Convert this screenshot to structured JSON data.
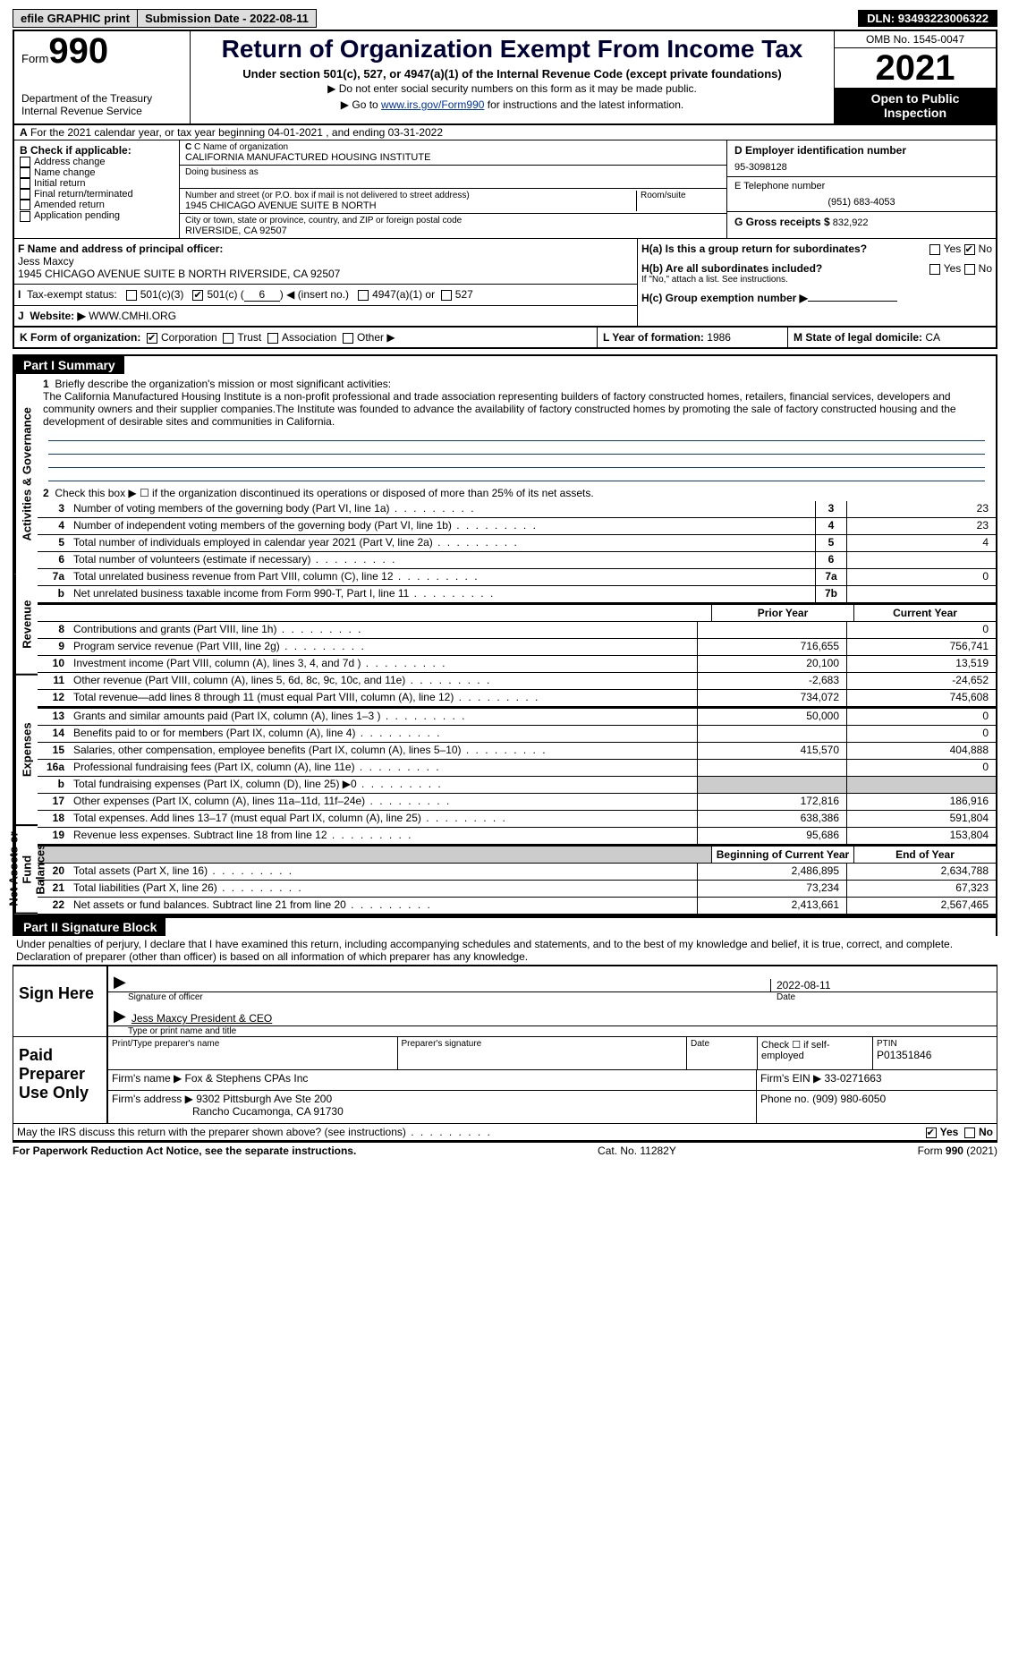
{
  "topbar": {
    "efile": "efile GRAPHIC print",
    "subdate_label": "Submission Date -",
    "subdate": "2022-08-11",
    "dln_label": "DLN:",
    "dln": "93493223006322"
  },
  "header": {
    "form_prefix": "Form",
    "form_no": "990",
    "title": "Return of Organization Exempt From Income Tax",
    "sub1": "Under section 501(c), 527, or 4947(a)(1) of the Internal Revenue Code (except private foundations)",
    "sub2": "▶ Do not enter social security numbers on this form as it may be made public.",
    "sub3_pre": "▶ Go to ",
    "sub3_link": "www.irs.gov/Form990",
    "sub3_post": " for instructions and the latest information.",
    "omb": "OMB No. 1545-0047",
    "year": "2021",
    "open": "Open to Public Inspection",
    "dept": "Department of the Treasury",
    "irs": "Internal Revenue Service"
  },
  "A": {
    "text": "For the 2021 calendar year, or tax year beginning 04-01-2021    , and ending 03-31-2022"
  },
  "B": {
    "label": "B Check if applicable:",
    "opts": [
      "Address change",
      "Name change",
      "Initial return",
      "Final return/terminated",
      "Amended return",
      "Application pending"
    ]
  },
  "C": {
    "name_label": "C Name of organization",
    "name": "CALIFORNIA MANUFACTURED HOUSING INSTITUTE",
    "dba_label": "Doing business as",
    "street_label": "Number and street (or P.O. box if mail is not delivered to street address)",
    "room_label": "Room/suite",
    "street": "1945 CHICAGO AVENUE SUITE B NORTH",
    "city_label": "City or town, state or province, country, and ZIP or foreign postal code",
    "city": "RIVERSIDE, CA  92507"
  },
  "D": {
    "label": "D Employer identification number",
    "val": "95-3098128"
  },
  "E": {
    "label": "E Telephone number",
    "val": "(951) 683-4053"
  },
  "G": {
    "label": "G Gross receipts $",
    "val": "832,922"
  },
  "F": {
    "label": "F  Name and address of principal officer:",
    "name": "Jess Maxcy",
    "addr": "1945 CHICAGO AVENUE SUITE B NORTH RIVERSIDE, CA  92507"
  },
  "H": {
    "a_label": "H(a)  Is this a group return for subordinates?",
    "b_label": "H(b)  Are all subordinates included?",
    "b_note": "If \"No,\" attach a list. See instructions.",
    "c_label": "H(c)  Group exemption number ▶"
  },
  "I": {
    "label": "Tax-exempt status:",
    "o501c3": "501(c)(3)",
    "o501c": "501(c) (",
    "o501c_no": "6",
    "o501c_post": ") ◀ (insert no.)",
    "o4947": "4947(a)(1) or",
    "o527": "527"
  },
  "J": {
    "label": "Website: ▶",
    "val": "WWW.CMHI.ORG"
  },
  "K": {
    "label": "K Form of organization:",
    "opts": [
      "Corporation",
      "Trust",
      "Association",
      "Other ▶"
    ]
  },
  "L": {
    "label": "L Year of formation:",
    "val": "1986"
  },
  "M": {
    "label": "M State of legal domicile:",
    "val": "CA"
  },
  "partI": {
    "title": "Part I    Summary",
    "sideA": "Activities & Governance",
    "sideR": "Revenue",
    "sideE": "Expenses",
    "sideN": "Net Assets or Fund Balances",
    "l1": "Briefly describe the organization's mission or most significant activities:",
    "l1text": "The California Manufactured Housing Institute is a non-profit professional and trade association representing builders of factory constructed homes, retailers, financial services, developers and community owners and their supplier companies.The Institute was founded to advance the availability of factory constructed homes by promoting the sale of factory constructed housing and the development of desirable sites and communities in California.",
    "l2": "Check this box ▶ ☐  if the organization discontinued its operations or disposed of more than 25% of its net assets.",
    "lines": [
      {
        "n": "3",
        "t": "Number of voting members of the governing body (Part VI, line 1a)",
        "box": "3",
        "v": "23"
      },
      {
        "n": "4",
        "t": "Number of independent voting members of the governing body (Part VI, line 1b)",
        "box": "4",
        "v": "23"
      },
      {
        "n": "5",
        "t": "Total number of individuals employed in calendar year 2021 (Part V, line 2a)",
        "box": "5",
        "v": "4"
      },
      {
        "n": "6",
        "t": "Total number of volunteers (estimate if necessary)",
        "box": "6",
        "v": ""
      },
      {
        "n": "7a",
        "t": "Total unrelated business revenue from Part VIII, column (C), line 12",
        "box": "7a",
        "v": "0"
      },
      {
        "n": "b",
        "t": "Net unrelated business taxable income from Form 990-T, Part I, line 11",
        "box": "7b",
        "v": ""
      }
    ],
    "colhead_prior": "Prior Year",
    "colhead_cur": "Current Year",
    "rev": [
      {
        "n": "8",
        "t": "Contributions and grants (Part VIII, line 1h)",
        "p": "",
        "c": "0"
      },
      {
        "n": "9",
        "t": "Program service revenue (Part VIII, line 2g)",
        "p": "716,655",
        "c": "756,741"
      },
      {
        "n": "10",
        "t": "Investment income (Part VIII, column (A), lines 3, 4, and 7d )",
        "p": "20,100",
        "c": "13,519"
      },
      {
        "n": "11",
        "t": "Other revenue (Part VIII, column (A), lines 5, 6d, 8c, 9c, 10c, and 11e)",
        "p": "-2,683",
        "c": "-24,652"
      },
      {
        "n": "12",
        "t": "Total revenue—add lines 8 through 11 (must equal Part VIII, column (A), line 12)",
        "p": "734,072",
        "c": "745,608"
      }
    ],
    "exp": [
      {
        "n": "13",
        "t": "Grants and similar amounts paid (Part IX, column (A), lines 1–3 )",
        "p": "50,000",
        "c": "0"
      },
      {
        "n": "14",
        "t": "Benefits paid to or for members (Part IX, column (A), line 4)",
        "p": "",
        "c": "0"
      },
      {
        "n": "15",
        "t": "Salaries, other compensation, employee benefits (Part IX, column (A), lines 5–10)",
        "p": "415,570",
        "c": "404,888"
      },
      {
        "n": "16a",
        "t": "Professional fundraising fees (Part IX, column (A), line 11e)",
        "p": "",
        "c": "0"
      },
      {
        "n": "b",
        "t": "Total fundraising expenses (Part IX, column (D), line 25) ▶0",
        "p": "shade",
        "c": "shade"
      },
      {
        "n": "17",
        "t": "Other expenses (Part IX, column (A), lines 11a–11d, 11f–24e)",
        "p": "172,816",
        "c": "186,916"
      },
      {
        "n": "18",
        "t": "Total expenses. Add lines 13–17 (must equal Part IX, column (A), line 25)",
        "p": "638,386",
        "c": "591,804"
      },
      {
        "n": "19",
        "t": "Revenue less expenses. Subtract line 18 from line 12",
        "p": "95,686",
        "c": "153,804"
      }
    ],
    "colhead_begin": "Beginning of Current Year",
    "colhead_end": "End of Year",
    "net": [
      {
        "n": "20",
        "t": "Total assets (Part X, line 16)",
        "p": "2,486,895",
        "c": "2,634,788"
      },
      {
        "n": "21",
        "t": "Total liabilities (Part X, line 26)",
        "p": "73,234",
        "c": "67,323"
      },
      {
        "n": "22",
        "t": "Net assets or fund balances. Subtract line 21 from line 20",
        "p": "2,413,661",
        "c": "2,567,465"
      }
    ]
  },
  "partII": {
    "title": "Part II    Signature Block",
    "decl": "Under penalties of perjury, I declare that I have examined this return, including accompanying schedules and statements, and to the best of my knowledge and belief, it is true, correct, and complete. Declaration of preparer (other than officer) is based on all information of which preparer has any knowledge.",
    "sign_here": "Sign Here",
    "sig_officer": "Signature of officer",
    "sig_date": "2022-08-11",
    "date_lbl": "Date",
    "officer": "Jess Maxcy President & CEO",
    "officer_lbl": "Type or print name and title",
    "paid_lbl": "Paid Preparer Use Only",
    "prep_name_lbl": "Print/Type preparer's name",
    "prep_sig_lbl": "Preparer's signature",
    "prep_date_lbl": "Date",
    "check_self": "Check ☐ if self-employed",
    "ptin_lbl": "PTIN",
    "ptin": "P01351846",
    "firm_name_lbl": "Firm's name  ▶",
    "firm_name": "Fox & Stephens CPAs Inc",
    "firm_ein_lbl": "Firm's EIN ▶",
    "firm_ein": "33-0271663",
    "firm_addr_lbl": "Firm's address ▶",
    "firm_addr": "9302 Pittsburgh Ave Ste 200",
    "firm_addr2": "Rancho Cucamonga, CA  91730",
    "phone_lbl": "Phone no.",
    "phone": "(909) 980-6050",
    "discuss": "May the IRS discuss this return with the preparer shown above? (see instructions)",
    "yes": "Yes",
    "no": "No"
  },
  "footer": {
    "paperwork": "For Paperwork Reduction Act Notice, see the separate instructions.",
    "cat": "Cat. No. 11282Y",
    "form": "Form 990 (2021)"
  }
}
